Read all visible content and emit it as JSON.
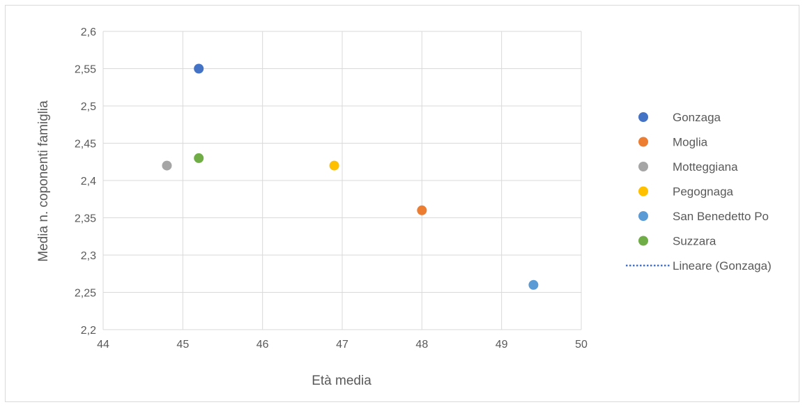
{
  "chart_data": {
    "type": "scatter",
    "title": "",
    "xlabel": "Età media",
    "ylabel": "Media n. coponenti famiglia",
    "xlim": [
      44,
      50
    ],
    "ylim": [
      2.2,
      2.6
    ],
    "xticks": [
      "44",
      "45",
      "46",
      "47",
      "48",
      "49",
      "50"
    ],
    "yticks": [
      "2,2",
      "2,25",
      "2,3",
      "2,35",
      "2,4",
      "2,45",
      "2,5",
      "2,55",
      "2,6"
    ],
    "grid": true,
    "legend_position": "right",
    "series": [
      {
        "name": "Gonzaga",
        "color": "#4472c4",
        "x": 45.2,
        "y": 2.55
      },
      {
        "name": "Moglia",
        "color": "#ed7d31",
        "x": 48.0,
        "y": 2.36
      },
      {
        "name": "Motteggiana",
        "color": "#a5a5a5",
        "x": 44.8,
        "y": 2.42
      },
      {
        "name": "Pegognaga",
        "color": "#ffc000",
        "x": 46.9,
        "y": 2.42
      },
      {
        "name": "San Benedetto Po",
        "color": "#5b9bd5",
        "x": 49.4,
        "y": 2.26
      },
      {
        "name": "Suzzara",
        "color": "#70ad47",
        "x": 45.2,
        "y": 2.43
      }
    ],
    "trendline_legend": {
      "name": "Lineare (Gonzaga)",
      "color": "#4472c4",
      "style": "dotted"
    }
  }
}
